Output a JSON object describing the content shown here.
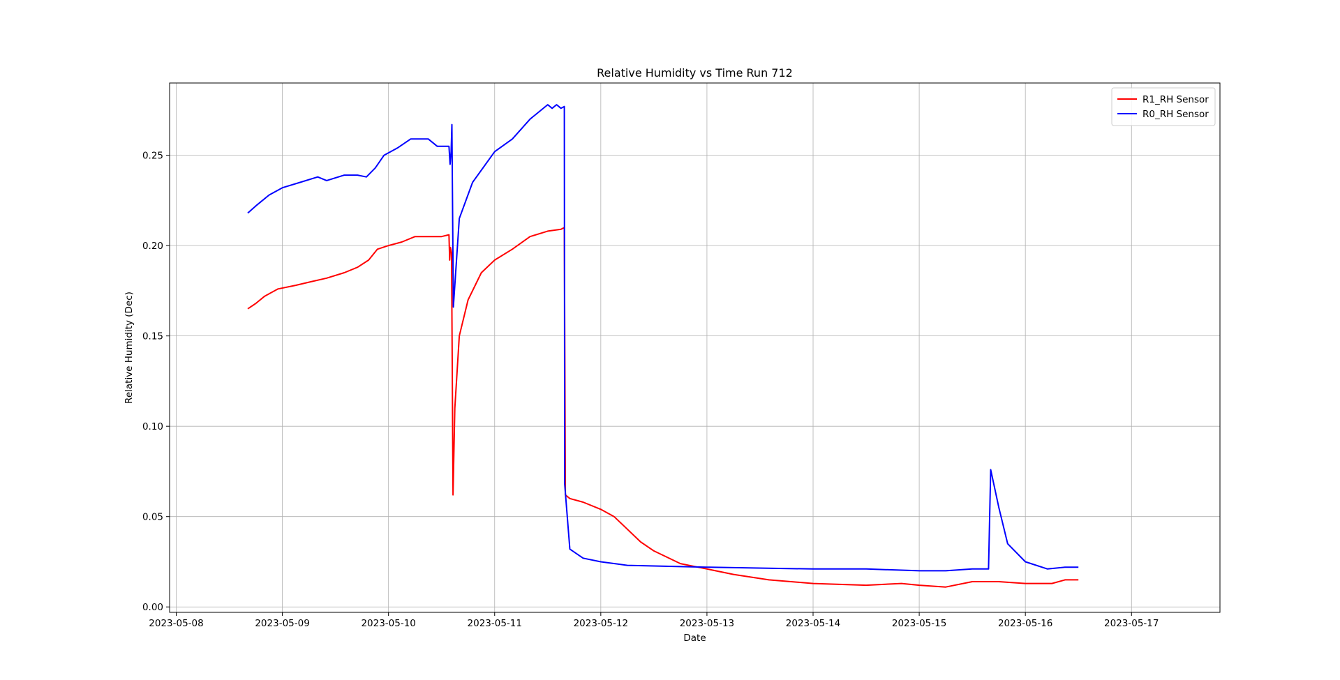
{
  "chart_data": {
    "type": "line",
    "title": "Relative Humidity vs Time Run 712",
    "xlabel": "Date",
    "ylabel": "Relative Humidity (Dec)",
    "xlim": [
      "2023-05-07 22:30",
      "2023-05-17 20:00"
    ],
    "ylim": [
      -0.003,
      0.29
    ],
    "grid": true,
    "legend_position": "top-right",
    "x_ticks": [
      "2023-05-08",
      "2023-05-09",
      "2023-05-10",
      "2023-05-11",
      "2023-05-12",
      "2023-05-13",
      "2023-05-14",
      "2023-05-15",
      "2023-05-16",
      "2023-05-17"
    ],
    "y_ticks": [
      0.0,
      0.05,
      0.1,
      0.15,
      0.2,
      0.25
    ],
    "y_tick_labels": [
      "0.00",
      "0.05",
      "0.10",
      "0.15",
      "0.20",
      "0.25"
    ],
    "series": [
      {
        "name": "R1_RH Sensor",
        "color": "#ff0000",
        "points": [
          [
            "2023-05-08 16:10",
            0.165
          ],
          [
            "2023-05-08 18:00",
            0.168
          ],
          [
            "2023-05-08 20:00",
            0.172
          ],
          [
            "2023-05-08 23:00",
            0.176
          ],
          [
            "2023-05-09 03:00",
            0.178
          ],
          [
            "2023-05-09 06:30",
            0.18
          ],
          [
            "2023-05-09 10:00",
            0.182
          ],
          [
            "2023-05-09 14:00",
            0.185
          ],
          [
            "2023-05-09 17:00",
            0.188
          ],
          [
            "2023-05-09 19:30",
            0.192
          ],
          [
            "2023-05-09 21:30",
            0.198
          ],
          [
            "2023-05-10 00:00",
            0.2
          ],
          [
            "2023-05-10 03:00",
            0.202
          ],
          [
            "2023-05-10 06:00",
            0.205
          ],
          [
            "2023-05-10 09:00",
            0.205
          ],
          [
            "2023-05-10 12:00",
            0.205
          ],
          [
            "2023-05-10 13:40",
            0.206
          ],
          [
            "2023-05-10 13:50",
            0.192
          ],
          [
            "2023-05-10 14:00",
            0.199
          ],
          [
            "2023-05-10 14:15",
            0.196
          ],
          [
            "2023-05-10 14:35",
            0.062
          ],
          [
            "2023-05-10 15:00",
            0.11
          ],
          [
            "2023-05-10 16:00",
            0.15
          ],
          [
            "2023-05-10 18:00",
            0.17
          ],
          [
            "2023-05-10 21:00",
            0.185
          ],
          [
            "2023-05-11 00:00",
            0.192
          ],
          [
            "2023-05-11 04:00",
            0.198
          ],
          [
            "2023-05-11 08:00",
            0.205
          ],
          [
            "2023-05-11 12:00",
            0.208
          ],
          [
            "2023-05-11 15:00",
            0.209
          ],
          [
            "2023-05-11 15:45",
            0.21
          ],
          [
            "2023-05-11 16:00",
            0.062
          ],
          [
            "2023-05-11 17:00",
            0.06
          ],
          [
            "2023-05-11 20:00",
            0.058
          ],
          [
            "2023-05-12 00:00",
            0.054
          ],
          [
            "2023-05-12 03:00",
            0.05
          ],
          [
            "2023-05-12 06:00",
            0.043
          ],
          [
            "2023-05-12 09:00",
            0.036
          ],
          [
            "2023-05-12 12:00",
            0.031
          ],
          [
            "2023-05-12 18:00",
            0.024
          ],
          [
            "2023-05-13 00:00",
            0.021
          ],
          [
            "2023-05-13 06:00",
            0.018
          ],
          [
            "2023-05-13 14:00",
            0.015
          ],
          [
            "2023-05-14 00:00",
            0.013
          ],
          [
            "2023-05-14 12:00",
            0.012
          ],
          [
            "2023-05-14 20:00",
            0.013
          ],
          [
            "2023-05-15 00:00",
            0.012
          ],
          [
            "2023-05-15 06:00",
            0.011
          ],
          [
            "2023-05-15 12:00",
            0.014
          ],
          [
            "2023-05-15 18:00",
            0.014
          ],
          [
            "2023-05-16 00:00",
            0.013
          ],
          [
            "2023-05-16 06:00",
            0.013
          ],
          [
            "2023-05-16 09:00",
            0.015
          ],
          [
            "2023-05-16 12:00",
            0.015
          ]
        ]
      },
      {
        "name": "R0_RH Sensor",
        "color": "#0000ff",
        "points": [
          [
            "2023-05-08 16:10",
            0.218
          ],
          [
            "2023-05-08 18:00",
            0.222
          ],
          [
            "2023-05-08 21:00",
            0.228
          ],
          [
            "2023-05-09 00:00",
            0.232
          ],
          [
            "2023-05-09 04:00",
            0.235
          ],
          [
            "2023-05-09 08:00",
            0.238
          ],
          [
            "2023-05-09 10:00",
            0.236
          ],
          [
            "2023-05-09 14:00",
            0.239
          ],
          [
            "2023-05-09 17:00",
            0.239
          ],
          [
            "2023-05-09 19:00",
            0.238
          ],
          [
            "2023-05-09 21:00",
            0.243
          ],
          [
            "2023-05-09 23:00",
            0.25
          ],
          [
            "2023-05-10 02:00",
            0.254
          ],
          [
            "2023-05-10 05:00",
            0.259
          ],
          [
            "2023-05-10 09:00",
            0.259
          ],
          [
            "2023-05-10 11:00",
            0.255
          ],
          [
            "2023-05-10 13:40",
            0.255
          ],
          [
            "2023-05-10 13:55",
            0.245
          ],
          [
            "2023-05-10 14:10",
            0.252
          ],
          [
            "2023-05-10 14:20",
            0.267
          ],
          [
            "2023-05-10 14:40",
            0.166
          ],
          [
            "2023-05-10 16:00",
            0.215
          ],
          [
            "2023-05-10 19:00",
            0.235
          ],
          [
            "2023-05-11 00:00",
            0.252
          ],
          [
            "2023-05-11 04:00",
            0.259
          ],
          [
            "2023-05-11 08:00",
            0.27
          ],
          [
            "2023-05-11 12:00",
            0.278
          ],
          [
            "2023-05-11 13:00",
            0.276
          ],
          [
            "2023-05-11 14:00",
            0.278
          ],
          [
            "2023-05-11 15:00",
            0.276
          ],
          [
            "2023-05-11 15:45",
            0.277
          ],
          [
            "2023-05-11 15:50",
            0.068
          ],
          [
            "2023-05-11 17:00",
            0.032
          ],
          [
            "2023-05-11 20:00",
            0.027
          ],
          [
            "2023-05-12 00:00",
            0.025
          ],
          [
            "2023-05-12 06:00",
            0.023
          ],
          [
            "2023-05-13 00:00",
            0.022
          ],
          [
            "2023-05-14 00:00",
            0.021
          ],
          [
            "2023-05-14 12:00",
            0.021
          ],
          [
            "2023-05-15 00:00",
            0.02
          ],
          [
            "2023-05-15 06:00",
            0.02
          ],
          [
            "2023-05-15 12:00",
            0.021
          ],
          [
            "2023-05-15 15:40",
            0.021
          ],
          [
            "2023-05-15 16:10",
            0.076
          ],
          [
            "2023-05-15 18:00",
            0.055
          ],
          [
            "2023-05-15 20:00",
            0.035
          ],
          [
            "2023-05-16 00:00",
            0.025
          ],
          [
            "2023-05-16 05:00",
            0.021
          ],
          [
            "2023-05-16 09:00",
            0.022
          ],
          [
            "2023-05-16 12:00",
            0.022
          ]
        ]
      }
    ]
  }
}
